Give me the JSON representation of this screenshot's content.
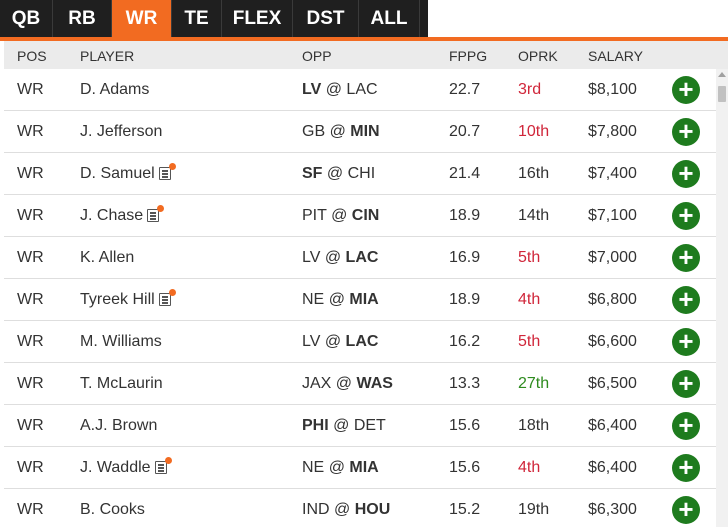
{
  "tabs": [
    {
      "label": "QB",
      "active": false
    },
    {
      "label": "RB",
      "active": false
    },
    {
      "label": "WR",
      "active": true
    },
    {
      "label": "TE",
      "active": false
    },
    {
      "label": "FLEX",
      "active": false
    },
    {
      "label": "DST",
      "active": false
    },
    {
      "label": "ALL",
      "active": false
    }
  ],
  "colors": {
    "accent": "#f26b21",
    "tabbar": "#1f1f1f",
    "add_button": "#1e7b1e",
    "rank_bad": "#d0263a",
    "rank_good": "#2e8b1e"
  },
  "columns": {
    "pos": "POS",
    "player": "PLAYER",
    "opp": "OPP",
    "fppg": "FPPG",
    "oprk": "OPRK",
    "salary": "SALARY"
  },
  "rows": [
    {
      "pos": "WR",
      "player": "D. Adams",
      "news": false,
      "away": "LV",
      "at": "@",
      "home": "LAC",
      "bold": "away",
      "fppg": "22.7",
      "oprk": "3rd",
      "rank_color": "red",
      "salary": "$8,100"
    },
    {
      "pos": "WR",
      "player": "J. Jefferson",
      "news": false,
      "away": "GB",
      "at": "@",
      "home": "MIN",
      "bold": "home",
      "fppg": "20.7",
      "oprk": "10th",
      "rank_color": "red",
      "salary": "$7,800"
    },
    {
      "pos": "WR",
      "player": "D. Samuel",
      "news": true,
      "away": "SF",
      "at": "@",
      "home": "CHI",
      "bold": "away",
      "fppg": "21.4",
      "oprk": "16th",
      "rank_color": "neutral",
      "salary": "$7,400"
    },
    {
      "pos": "WR",
      "player": "J. Chase",
      "news": true,
      "away": "PIT",
      "at": "@",
      "home": "CIN",
      "bold": "home",
      "fppg": "18.9",
      "oprk": "14th",
      "rank_color": "neutral",
      "salary": "$7,100"
    },
    {
      "pos": "WR",
      "player": "K. Allen",
      "news": false,
      "away": "LV",
      "at": "@",
      "home": "LAC",
      "bold": "home",
      "fppg": "16.9",
      "oprk": "5th",
      "rank_color": "red",
      "salary": "$7,000"
    },
    {
      "pos": "WR",
      "player": "Tyreek Hill",
      "news": true,
      "away": "NE",
      "at": "@",
      "home": "MIA",
      "bold": "home",
      "fppg": "18.9",
      "oprk": "4th",
      "rank_color": "red",
      "salary": "$6,800"
    },
    {
      "pos": "WR",
      "player": "M. Williams",
      "news": false,
      "away": "LV",
      "at": "@",
      "home": "LAC",
      "bold": "home",
      "fppg": "16.2",
      "oprk": "5th",
      "rank_color": "red",
      "salary": "$6,600"
    },
    {
      "pos": "WR",
      "player": "T. McLaurin",
      "news": false,
      "away": "JAX",
      "at": "@",
      "home": "WAS",
      "bold": "home",
      "fppg": "13.3",
      "oprk": "27th",
      "rank_color": "green",
      "salary": "$6,500"
    },
    {
      "pos": "WR",
      "player": "A.J. Brown",
      "news": false,
      "away": "PHI",
      "at": "@",
      "home": "DET",
      "bold": "away",
      "fppg": "15.6",
      "oprk": "18th",
      "rank_color": "neutral",
      "salary": "$6,400"
    },
    {
      "pos": "WR",
      "player": "J. Waddle",
      "news": true,
      "away": "NE",
      "at": "@",
      "home": "MIA",
      "bold": "home",
      "fppg": "15.6",
      "oprk": "4th",
      "rank_color": "red",
      "salary": "$6,400"
    },
    {
      "pos": "WR",
      "player": "B. Cooks",
      "news": false,
      "away": "IND",
      "at": "@",
      "home": "HOU",
      "bold": "home",
      "fppg": "15.2",
      "oprk": "19th",
      "rank_color": "neutral",
      "salary": "$6,300"
    }
  ],
  "icons": {
    "add": "plus-circle-icon",
    "news": "news-document-icon",
    "add_glyph": "+"
  }
}
